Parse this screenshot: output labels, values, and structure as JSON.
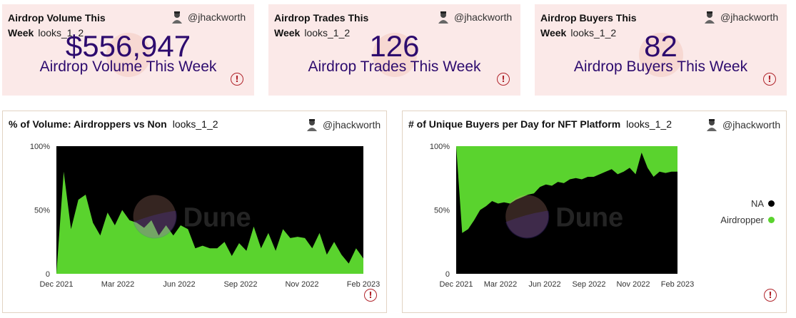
{
  "author": "@jhackworth",
  "kpis": [
    {
      "title": "Airdrop Volume This Week",
      "slug": "looks_1_2",
      "value": "$556,947",
      "label": "Airdrop Volume This Week"
    },
    {
      "title": "Airdrop Trades This Week",
      "slug": "looks_1_2",
      "value": "126",
      "label": "Airdrop Trades This Week"
    },
    {
      "title": "Airdrop Buyers This Week",
      "slug": "looks_1_2",
      "value": "82",
      "label": "Airdrop Buyers This Week"
    }
  ],
  "watermark": "Dune",
  "colors": {
    "airdropper": "#5ad32e",
    "na": "#000000",
    "kpi_bg": "#fbe9e8",
    "kpi_text": "#2d0b6e",
    "warning": "#b0242b"
  },
  "charts": [
    {
      "title": "% of Volume: Airdroppers vs Non",
      "slug": "looks_1_2"
    },
    {
      "title": "# of Unique Buyers per Day for NFT Platform",
      "slug": "looks_1_2"
    }
  ],
  "chart_data": [
    {
      "type": "area",
      "stacked": true,
      "normalized": true,
      "title": "% of Volume: Airdroppers vs Non",
      "x_ticks": [
        "Dec 2021",
        "Mar 2022",
        "Jun 2022",
        "Sep 2022",
        "Nov 2022",
        "Feb 2023"
      ],
      "y_ticks": [
        "0",
        "50%",
        "100%"
      ],
      "ylim": [
        0,
        100
      ],
      "legend": "none",
      "series": [
        {
          "name": "",
          "color": "#5ad32e",
          "values": [
            0,
            80,
            35,
            58,
            62,
            40,
            30,
            48,
            38,
            50,
            42,
            40,
            36,
            42,
            30,
            38,
            30,
            38,
            35,
            20,
            22,
            20,
            20,
            25,
            14,
            24,
            18,
            37,
            20,
            32,
            18,
            35,
            28,
            29,
            28,
            20,
            32,
            15,
            25,
            15,
            8,
            20,
            12
          ]
        },
        {
          "name": "",
          "color": "#000000",
          "values": [
            100,
            20,
            65,
            42,
            38,
            60,
            70,
            52,
            62,
            50,
            58,
            60,
            64,
            58,
            70,
            62,
            70,
            62,
            65,
            80,
            78,
            80,
            80,
            75,
            86,
            76,
            82,
            63,
            80,
            68,
            82,
            65,
            72,
            71,
            72,
            80,
            68,
            85,
            75,
            85,
            92,
            80,
            88
          ]
        }
      ]
    },
    {
      "type": "area",
      "stacked": true,
      "normalized": true,
      "title": "# of Unique Buyers per Day for NFT Platform",
      "x_ticks": [
        "Dec 2021",
        "Mar 2022",
        "Jun 2022",
        "Sep 2022",
        "Nov 2022",
        "Feb 2023"
      ],
      "y_ticks": [
        "0",
        "50%",
        "100%"
      ],
      "ylim": [
        0,
        100
      ],
      "legend": "right",
      "series": [
        {
          "name": "NA",
          "color": "#000000",
          "values": [
            100,
            32,
            35,
            42,
            50,
            53,
            57,
            55,
            56,
            55,
            58,
            60,
            62,
            63,
            68,
            70,
            69,
            72,
            71,
            74,
            75,
            74,
            76,
            76,
            78,
            80,
            82,
            78,
            80,
            83,
            78,
            95,
            83,
            76,
            80,
            79,
            80,
            80
          ]
        },
        {
          "name": "Airdropper",
          "color": "#5ad32e",
          "values": [
            0,
            68,
            65,
            58,
            50,
            47,
            43,
            45,
            44,
            45,
            42,
            40,
            38,
            37,
            32,
            30,
            31,
            28,
            29,
            26,
            25,
            26,
            24,
            24,
            22,
            20,
            18,
            22,
            20,
            17,
            22,
            5,
            17,
            24,
            20,
            21,
            20,
            20
          ]
        }
      ]
    }
  ]
}
